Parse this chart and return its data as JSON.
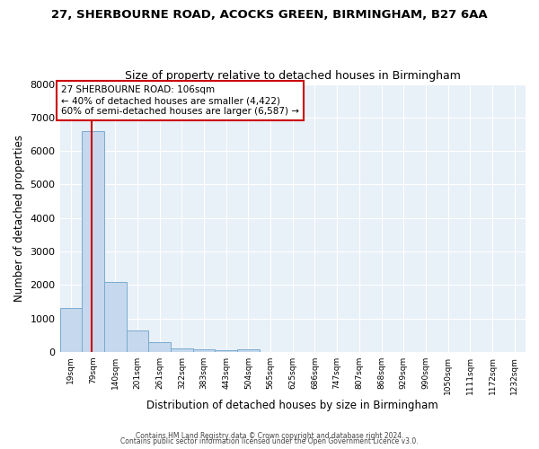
{
  "title1": "27, SHERBOURNE ROAD, ACOCKS GREEN, BIRMINGHAM, B27 6AA",
  "title2": "Size of property relative to detached houses in Birmingham",
  "xlabel": "Distribution of detached houses by size in Birmingham",
  "ylabel": "Number of detached properties",
  "bin_labels": [
    "19sqm",
    "79sqm",
    "140sqm",
    "201sqm",
    "261sqm",
    "322sqm",
    "383sqm",
    "443sqm",
    "504sqm",
    "565sqm",
    "625sqm",
    "686sqm",
    "747sqm",
    "807sqm",
    "868sqm",
    "929sqm",
    "990sqm",
    "1050sqm",
    "1111sqm",
    "1172sqm",
    "1232sqm"
  ],
  "bar_heights": [
    1300,
    6600,
    2100,
    650,
    300,
    115,
    70,
    50,
    80,
    0,
    0,
    0,
    0,
    0,
    0,
    0,
    0,
    0,
    0,
    0,
    0
  ],
  "bar_color": "#c5d8ed",
  "bar_edge_color": "#7aabcf",
  "bar_edge_width": 0.7,
  "property_sqm": 106,
  "annotation_line1": "27 SHERBOURNE ROAD: 106sqm",
  "annotation_line2": "← 40% of detached houses are smaller (4,422)",
  "annotation_line3": "60% of semi-detached houses are larger (6,587) →",
  "annotation_box_color": "#ffffff",
  "annotation_box_edge_color": "#cc0000",
  "ylim": [
    0,
    8000
  ],
  "yticks": [
    0,
    1000,
    2000,
    3000,
    4000,
    5000,
    6000,
    7000,
    8000
  ],
  "background_color": "#ffffff",
  "plot_background_color": "#e8f0f8",
  "grid_color": "#ffffff",
  "footer1": "Contains HM Land Registry data © Crown copyright and database right 2024.",
  "footer2": "Contains public sector information licensed under the Open Government Licence v3.0."
}
